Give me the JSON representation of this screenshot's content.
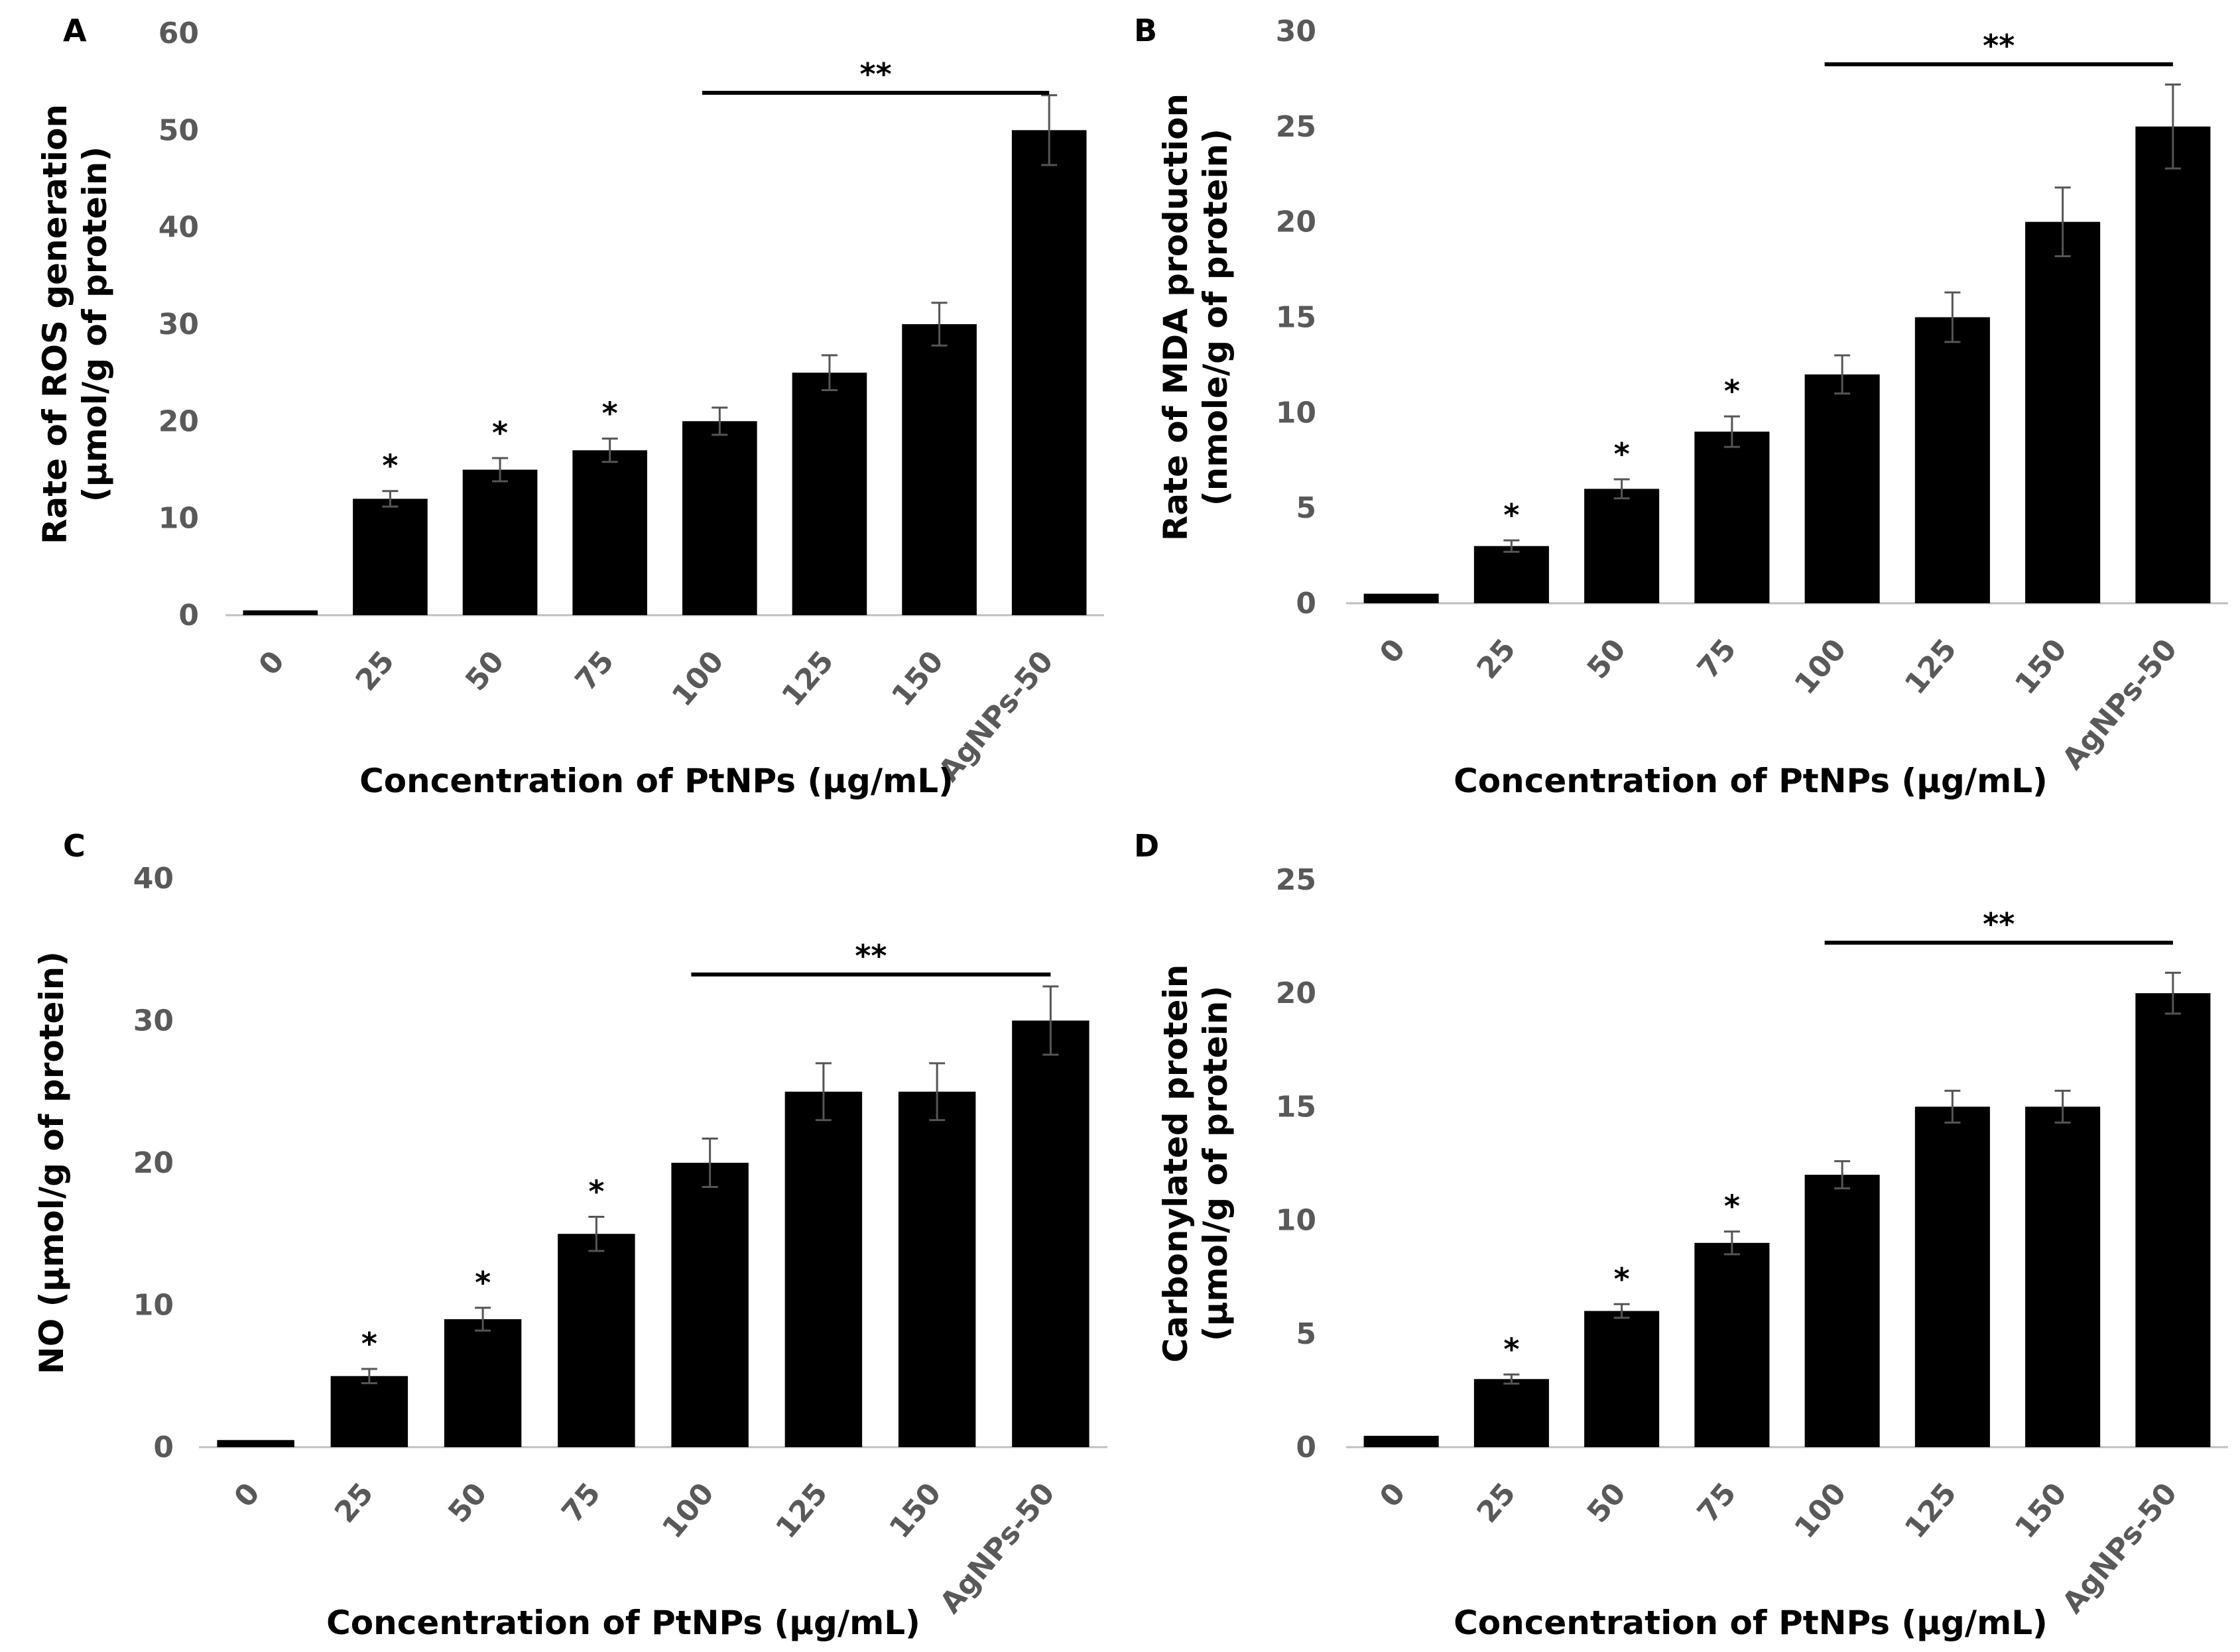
{
  "chart_data": [
    {
      "panel": "A",
      "type": "bar",
      "categories": [
        "0",
        "25",
        "50",
        "75",
        "100",
        "125",
        "150",
        "AgNPs-50"
      ],
      "values": [
        0.5,
        12,
        15,
        17,
        20,
        25,
        30,
        50
      ],
      "errors": [
        0.1,
        0.8,
        1.2,
        1.2,
        1.4,
        1.8,
        2.2,
        3.6
      ],
      "significance": [
        "",
        "*",
        "*",
        "*",
        "",
        "",
        "",
        ""
      ],
      "bracket": {
        "from": "100",
        "to": "AgNPs-50",
        "label": "**"
      },
      "ylabel_lines": [
        "Rate of ROS generation",
        "(µmol/g of protein)"
      ],
      "xlabel": "Concentration of PtNPs (µg/mL)",
      "yticks": [
        "0",
        "10",
        "20",
        "30",
        "40",
        "50",
        "60"
      ],
      "ylim": [
        0,
        60
      ],
      "colors": {
        "bar": "#000000",
        "tick": "#595959",
        "axis": "#bfbfbf"
      }
    },
    {
      "panel": "B",
      "type": "bar",
      "categories": [
        "0",
        "25",
        "50",
        "75",
        "100",
        "125",
        "150",
        "AgNPs-50"
      ],
      "values": [
        0.5,
        3,
        6,
        9,
        12,
        15,
        20,
        25
      ],
      "errors": [
        0.1,
        0.3,
        0.5,
        0.8,
        1.0,
        1.3,
        1.8,
        2.2
      ],
      "significance": [
        "",
        "*",
        "*",
        "*",
        "",
        "",
        "",
        ""
      ],
      "bracket": {
        "from": "100",
        "to": "AgNPs-50",
        "label": "**"
      },
      "ylabel_lines": [
        "Rate of MDA production",
        "(nmole/g of protein)"
      ],
      "xlabel": "Concentration of PtNPs (µg/mL)",
      "yticks": [
        "0",
        "5",
        "10",
        "15",
        "20",
        "25",
        "30"
      ],
      "ylim": [
        0,
        30
      ],
      "colors": {
        "bar": "#000000",
        "tick": "#595959",
        "axis": "#bfbfbf"
      }
    },
    {
      "panel": "C",
      "type": "bar",
      "categories": [
        "0",
        "25",
        "50",
        "75",
        "100",
        "125",
        "150",
        "AgNPs-50"
      ],
      "values": [
        0.5,
        5,
        9,
        15,
        20,
        25,
        25,
        30
      ],
      "errors": [
        0.1,
        0.5,
        0.8,
        1.2,
        1.7,
        2.0,
        2.0,
        2.4
      ],
      "significance": [
        "",
        "*",
        "*",
        "*",
        "",
        "",
        "",
        ""
      ],
      "bracket": {
        "from": "100",
        "to": "AgNPs-50",
        "label": "**"
      },
      "ylabel_lines": [
        "NO (µmol/g of protein)"
      ],
      "xlabel": "Concentration of PtNPs (µg/mL)",
      "yticks": [
        "0",
        "10",
        "20",
        "30",
        "40"
      ],
      "ylim": [
        0,
        40
      ],
      "colors": {
        "bar": "#000000",
        "tick": "#595959",
        "axis": "#bfbfbf"
      }
    },
    {
      "panel": "D",
      "type": "bar",
      "categories": [
        "0",
        "25",
        "50",
        "75",
        "100",
        "125",
        "150",
        "AgNPs-50"
      ],
      "values": [
        0.5,
        3,
        6,
        9,
        12,
        15,
        15,
        20
      ],
      "errors": [
        0.05,
        0.2,
        0.3,
        0.5,
        0.6,
        0.7,
        0.7,
        0.9
      ],
      "significance": [
        "",
        "*",
        "*",
        "*",
        "",
        "",
        "",
        ""
      ],
      "bracket": {
        "from": "100",
        "to": "AgNPs-50",
        "label": "**"
      },
      "ylabel_lines": [
        "Carbonylated protein",
        "(µmol/g of protein)"
      ],
      "xlabel": "Concentration of PtNPs (µg/mL)",
      "yticks": [
        "0",
        "5",
        "10",
        "15",
        "20",
        "25"
      ],
      "ylim": [
        0,
        25
      ],
      "colors": {
        "bar": "#000000",
        "tick": "#595959",
        "axis": "#bfbfbf"
      }
    }
  ]
}
